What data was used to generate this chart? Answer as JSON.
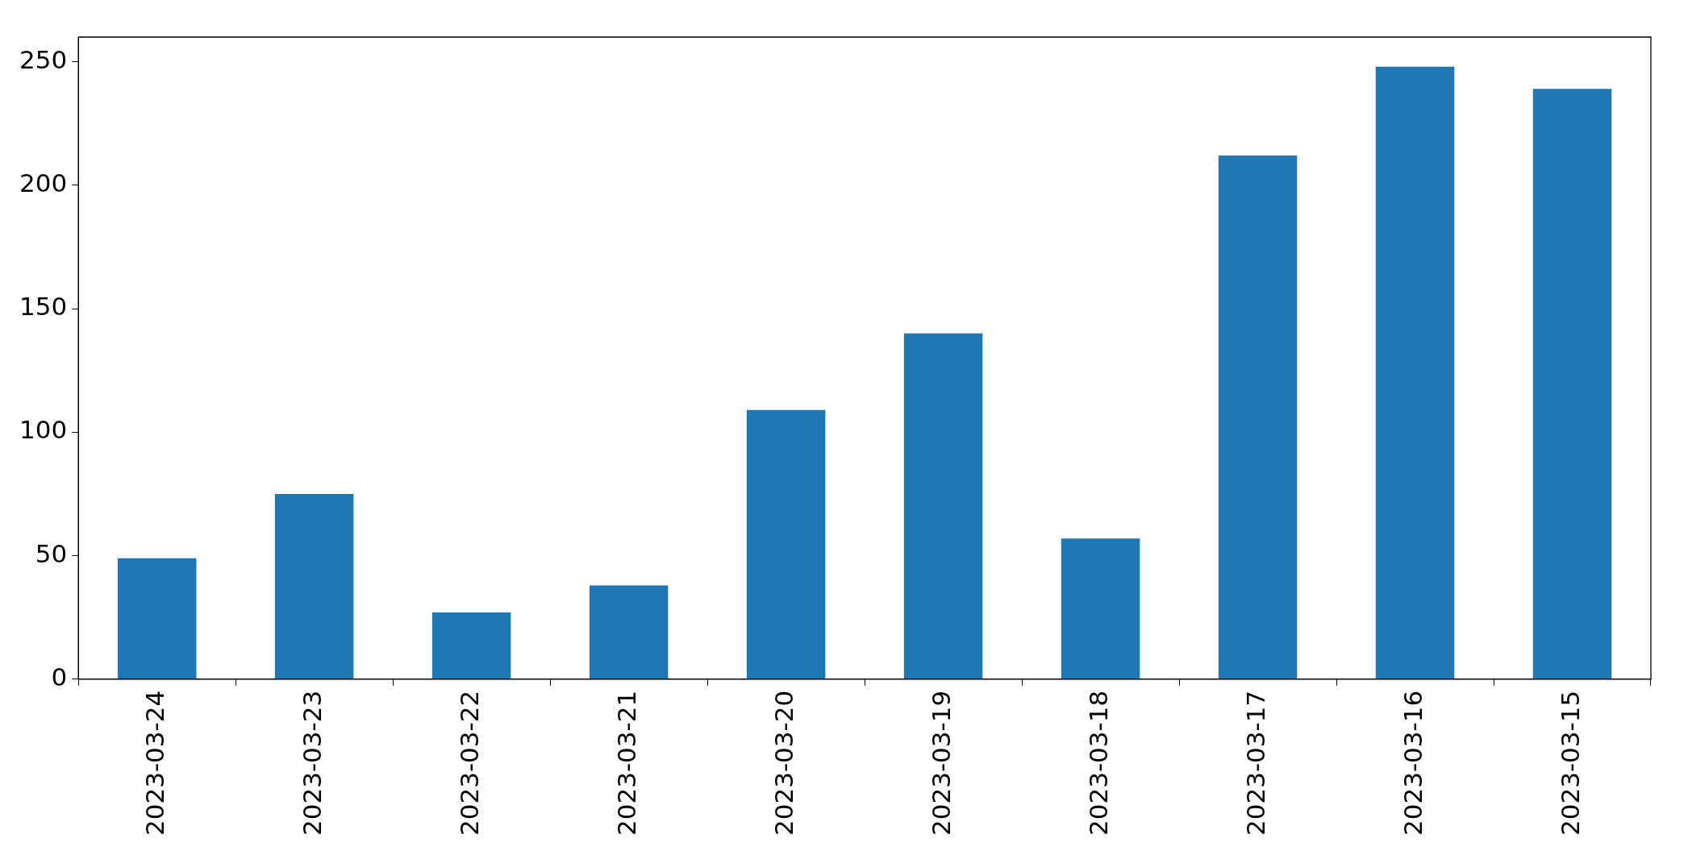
{
  "chart_data": {
    "type": "bar",
    "categories": [
      "2023-03-24",
      "2023-03-23",
      "2023-03-22",
      "2023-03-21",
      "2023-03-20",
      "2023-03-19",
      "2023-03-18",
      "2023-03-17",
      "2023-03-16",
      "2023-03-15"
    ],
    "values": [
      49,
      75,
      27,
      38,
      109,
      140,
      57,
      212,
      248,
      239
    ],
    "color": "#1f77b4",
    "ylim": [
      0,
      260
    ],
    "yticks": [
      0,
      50,
      100,
      150,
      200,
      250
    ],
    "grid": false,
    "legend": false
  }
}
